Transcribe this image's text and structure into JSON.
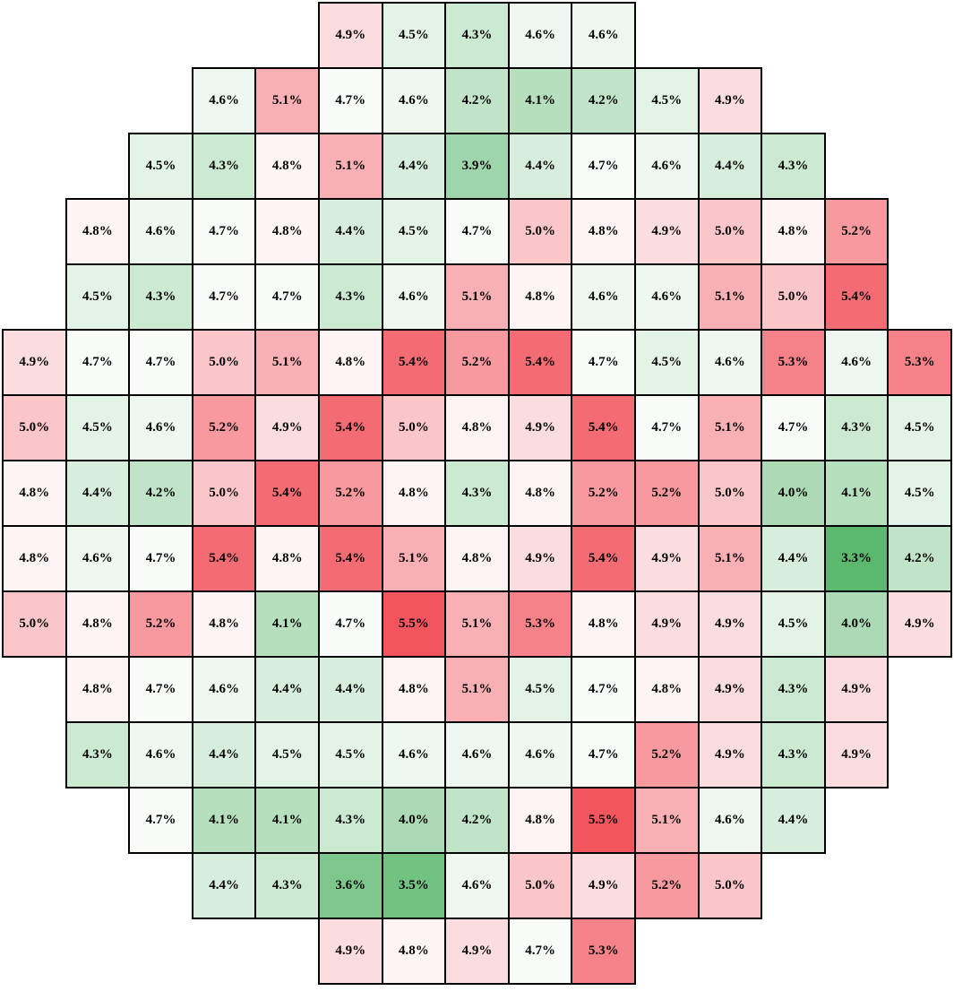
{
  "chart_data": {
    "type": "heatmap",
    "title": "",
    "value_format": "percent",
    "color_scale": {
      "low": "#5cb86e",
      "mid": "#ffffff",
      "high": "#f2555e",
      "min_value": 3.3,
      "mid_value": 4.75,
      "max_value": 5.5
    },
    "rows": [
      {
        "start_col": 5,
        "values": [
          "4.9%",
          "4.5%",
          "4.3%",
          "4.6%",
          "4.6%"
        ]
      },
      {
        "start_col": 3,
        "values": [
          "4.6%",
          "5.1%",
          "4.7%",
          "4.6%",
          "4.2%",
          "4.1%",
          "4.2%",
          "4.5%",
          "4.9%"
        ]
      },
      {
        "start_col": 2,
        "values": [
          "4.5%",
          "4.3%",
          "4.8%",
          "5.1%",
          "4.4%",
          "3.9%",
          "4.4%",
          "4.7%",
          "4.6%",
          "4.4%",
          "4.3%"
        ]
      },
      {
        "start_col": 1,
        "values": [
          "4.8%",
          "4.6%",
          "4.7%",
          "4.8%",
          "4.4%",
          "4.5%",
          "4.7%",
          "5.0%",
          "4.8%",
          "4.9%",
          "5.0%",
          "4.8%",
          "5.2%"
        ]
      },
      {
        "start_col": 1,
        "values": [
          "4.5%",
          "4.3%",
          "4.7%",
          "4.7%",
          "4.3%",
          "4.6%",
          "5.1%",
          "4.8%",
          "4.6%",
          "4.6%",
          "5.1%",
          "5.0%",
          "5.4%"
        ]
      },
      {
        "start_col": 0,
        "values": [
          "4.9%",
          "4.7%",
          "4.7%",
          "5.0%",
          "5.1%",
          "4.8%",
          "5.4%",
          "5.2%",
          "5.4%",
          "4.7%",
          "4.5%",
          "4.6%",
          "5.3%",
          "4.6%",
          "5.3%"
        ]
      },
      {
        "start_col": 0,
        "values": [
          "5.0%",
          "4.5%",
          "4.6%",
          "5.2%",
          "4.9%",
          "5.4%",
          "5.0%",
          "4.8%",
          "4.9%",
          "5.4%",
          "4.7%",
          "5.1%",
          "4.7%",
          "4.3%",
          "4.5%"
        ]
      },
      {
        "start_col": 0,
        "values": [
          "4.8%",
          "4.4%",
          "4.2%",
          "5.0%",
          "5.4%",
          "5.2%",
          "4.8%",
          "4.3%",
          "4.8%",
          "5.2%",
          "5.2%",
          "5.0%",
          "4.0%",
          "4.1%",
          "4.5%"
        ]
      },
      {
        "start_col": 0,
        "values": [
          "4.8%",
          "4.6%",
          "4.7%",
          "5.4%",
          "4.8%",
          "5.4%",
          "5.1%",
          "4.8%",
          "4.9%",
          "5.4%",
          "4.9%",
          "5.1%",
          "4.4%",
          "3.3%",
          "4.2%"
        ]
      },
      {
        "start_col": 0,
        "values": [
          "5.0%",
          "4.8%",
          "5.2%",
          "4.8%",
          "4.1%",
          "4.7%",
          "5.5%",
          "5.1%",
          "5.3%",
          "4.8%",
          "4.9%",
          "4.9%",
          "4.5%",
          "4.0%",
          "4.9%"
        ]
      },
      {
        "start_col": 1,
        "values": [
          "4.8%",
          "4.7%",
          "4.6%",
          "4.4%",
          "4.4%",
          "4.8%",
          "5.1%",
          "4.5%",
          "4.7%",
          "4.8%",
          "4.9%",
          "4.3%",
          "4.9%"
        ]
      },
      {
        "start_col": 1,
        "values": [
          "4.3%",
          "4.6%",
          "4.4%",
          "4.5%",
          "4.5%",
          "4.6%",
          "4.6%",
          "4.6%",
          "4.7%",
          "5.2%",
          "4.9%",
          "4.3%",
          "4.9%"
        ]
      },
      {
        "start_col": 2,
        "values": [
          "4.7%",
          "4.1%",
          "4.1%",
          "4.3%",
          "4.0%",
          "4.2%",
          "4.8%",
          "5.5%",
          "5.1%",
          "4.6%",
          "4.4%"
        ]
      },
      {
        "start_col": 3,
        "values": [
          "4.4%",
          "4.3%",
          "3.6%",
          "3.5%",
          "4.6%",
          "5.0%",
          "4.9%",
          "5.2%",
          "5.0%"
        ]
      },
      {
        "start_col": 5,
        "values": [
          "4.9%",
          "4.8%",
          "4.9%",
          "4.7%",
          "5.3%"
        ]
      }
    ]
  }
}
